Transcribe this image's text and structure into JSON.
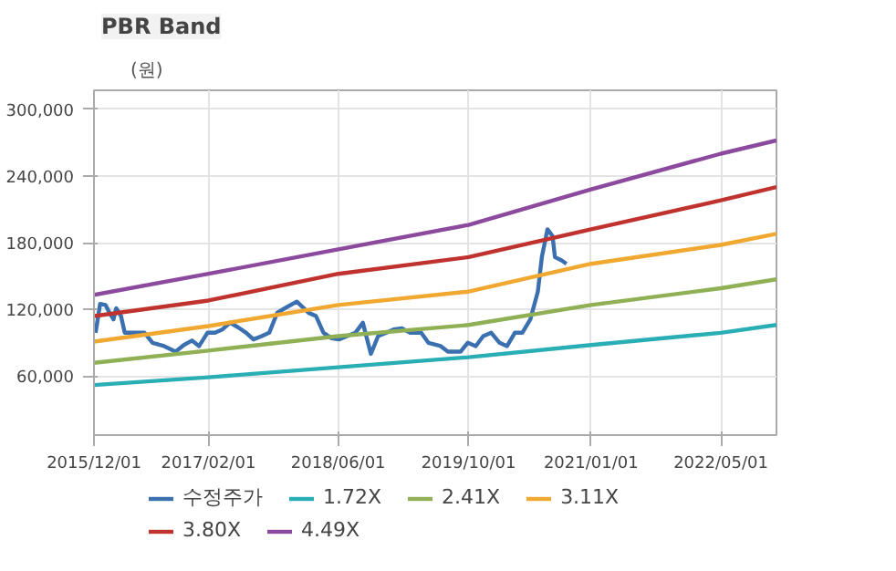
{
  "chart_data": {
    "type": "line",
    "title": "PBR Band",
    "ylabel": "(원)",
    "xlim": [
      "2015-12-01",
      "2022-11-25"
    ],
    "xticks": [
      {
        "value": "2015-12-01",
        "label": "2015/12/01"
      },
      {
        "value": "2017-02-01",
        "label": "2017/02/01"
      },
      {
        "value": "2018-06-01",
        "label": "2018/06/01"
      },
      {
        "value": "2019-10-01",
        "label": "2019/10/01"
      },
      {
        "value": "2021-01-01",
        "label": "2021/01/01"
      },
      {
        "value": "2022-05-01",
        "label": "2022/05/01"
      }
    ],
    "ylim": [
      7000,
      317000
    ],
    "yticks": [
      {
        "value": 60000,
        "label": "60,000"
      },
      {
        "value": 120000,
        "label": "120,000"
      },
      {
        "value": 180000,
        "label": "180,000"
      },
      {
        "value": 240000,
        "label": "240,000"
      },
      {
        "value": 300000,
        "label": "300,000"
      }
    ],
    "grid": true,
    "legend": "bottom",
    "marker": "none",
    "line_style": "solid",
    "series": [
      {
        "name": "수정주가",
        "color": "#3a6fb0",
        "x": [
          "2015-12-07",
          "2015-12-24",
          "2016-01-13",
          "2016-01-28",
          "2016-02-12",
          "2016-02-22",
          "2016-03-11",
          "2016-03-25",
          "2016-04-25",
          "2016-06-07",
          "2016-07-07",
          "2016-08-19",
          "2016-10-01",
          "2016-11-01",
          "2016-12-01",
          "2016-12-28",
          "2017-01-28",
          "2017-02-25",
          "2017-03-25",
          "2017-04-22",
          "2017-05-22",
          "2017-06-22",
          "2017-07-19",
          "2017-08-19",
          "2017-09-16",
          "2017-10-16",
          "2017-11-13",
          "2017-12-28",
          "2018-02-10",
          "2018-03-10",
          "2018-04-07",
          "2018-05-07",
          "2018-06-04",
          "2018-07-04",
          "2018-08-04",
          "2018-09-01",
          "2018-10-01",
          "2018-10-28",
          "2018-11-28",
          "2018-12-25",
          "2019-01-25",
          "2019-02-25",
          "2019-04-07",
          "2019-05-04",
          "2019-06-19",
          "2019-07-16",
          "2019-09-01",
          "2019-09-28",
          "2019-10-28",
          "2019-11-25",
          "2019-12-25",
          "2020-01-25",
          "2020-02-22",
          "2020-03-22",
          "2020-04-19",
          "2020-05-19",
          "2020-06-16",
          "2020-07-01",
          "2020-07-22",
          "2020-08-10",
          "2020-08-19",
          "2020-09-13",
          "2020-10-01"
        ],
        "values": [
          99000,
          125000,
          124000,
          117000,
          111000,
          121000,
          114000,
          99000,
          99000,
          99000,
          90000,
          87000,
          82000,
          88000,
          92000,
          87000,
          99000,
          99000,
          102000,
          108000,
          104000,
          99000,
          93000,
          96000,
          99000,
          117000,
          121000,
          127000,
          117000,
          114000,
          99000,
          94000,
          93000,
          96000,
          99000,
          108000,
          80000,
          96000,
          99000,
          102000,
          103000,
          99000,
          99000,
          90000,
          87000,
          82000,
          82000,
          90000,
          87000,
          96000,
          99000,
          90000,
          87000,
          99000,
          99000,
          111000,
          136000,
          167000,
          192000,
          186000,
          167000,
          164000,
          161000
        ]
      },
      {
        "name": "1.72X",
        "color": "#2aaeb5",
        "x": [
          "2015-12-01",
          "2017-02-01",
          "2018-06-01",
          "2019-10-01",
          "2021-01-01",
          "2022-05-01",
          "2022-11-25"
        ],
        "values": [
          52000,
          59000,
          68000,
          77000,
          88000,
          99000,
          106000
        ]
      },
      {
        "name": "2.41X",
        "color": "#8fb054",
        "x": [
          "2015-12-01",
          "2017-02-01",
          "2018-06-01",
          "2019-10-01",
          "2021-01-01",
          "2022-05-01",
          "2022-11-25"
        ],
        "values": [
          72000,
          83000,
          96000,
          106000,
          124000,
          139000,
          147000
        ]
      },
      {
        "name": "3.11X",
        "color": "#f0a830",
        "x": [
          "2015-12-01",
          "2017-02-01",
          "2018-06-01",
          "2019-10-01",
          "2021-01-01",
          "2022-05-01",
          "2022-11-25"
        ],
        "values": [
          91000,
          105000,
          124000,
          136000,
          161000,
          178000,
          188000
        ]
      },
      {
        "name": "3.80X",
        "color": "#c0322e",
        "x": [
          "2015-12-01",
          "2017-02-01",
          "2018-06-01",
          "2019-10-01",
          "2021-01-01",
          "2022-05-01",
          "2022-11-25"
        ],
        "values": [
          114000,
          128000,
          152000,
          167000,
          192000,
          218000,
          230000
        ]
      },
      {
        "name": "4.49X",
        "color": "#8c4a9e",
        "x": [
          "2015-12-01",
          "2017-02-01",
          "2018-06-01",
          "2019-10-01",
          "2021-01-01",
          "2022-05-01",
          "2022-11-25"
        ],
        "values": [
          133000,
          152000,
          174000,
          196000,
          228000,
          260000,
          272000
        ]
      }
    ]
  }
}
